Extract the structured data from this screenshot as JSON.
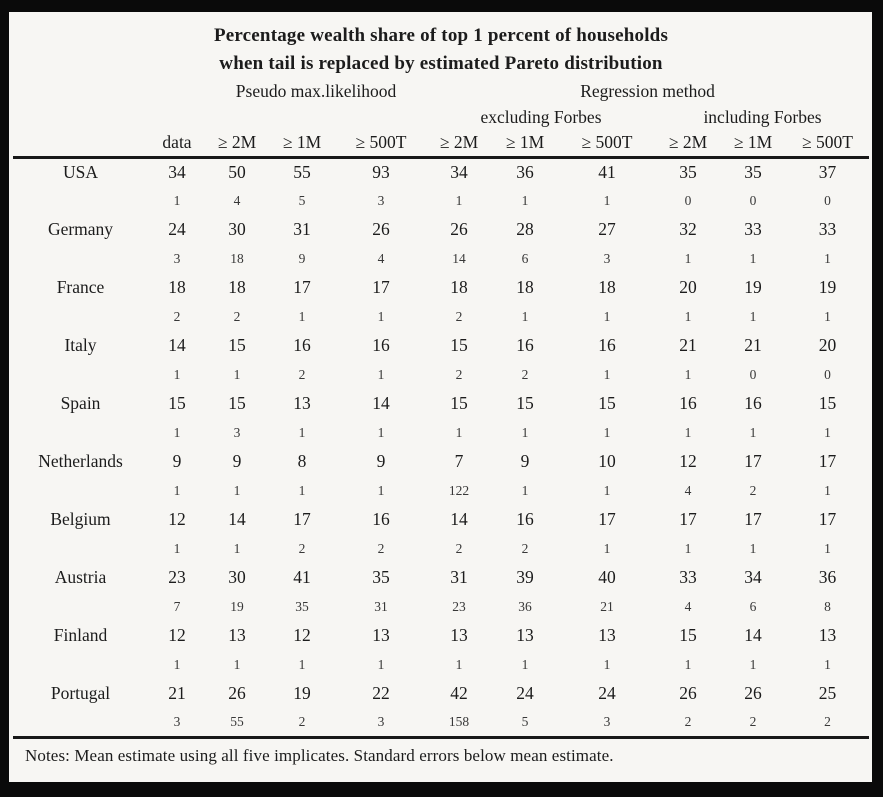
{
  "title_line1": "Percentage wealth share of top 1 percent of households",
  "title_line2": "when tail is replaced by estimated Pareto distribution",
  "header": {
    "method_groups": [
      {
        "label": "Pseudo max.likelihood"
      },
      {
        "label": "Regression method"
      }
    ],
    "forbes_groups": [
      {
        "label": "excluding Forbes"
      },
      {
        "label": "including Forbes"
      }
    ],
    "columns": [
      "data",
      "≥ 2M",
      "≥ 1M",
      "≥ 500T",
      "≥ 2M",
      "≥ 1M",
      "≥ 500T",
      "≥ 2M",
      "≥ 1M",
      "≥ 500T"
    ]
  },
  "rows": [
    {
      "country": "USA",
      "means": [
        34,
        50,
        55,
        93,
        34,
        36,
        41,
        35,
        35,
        37
      ],
      "se": [
        1,
        4,
        5,
        3,
        1,
        1,
        1,
        0,
        0,
        0
      ]
    },
    {
      "country": "Germany",
      "means": [
        24,
        30,
        31,
        26,
        26,
        28,
        27,
        32,
        33,
        33
      ],
      "se": [
        3,
        18,
        9,
        4,
        14,
        6,
        3,
        1,
        1,
        1
      ]
    },
    {
      "country": "France",
      "means": [
        18,
        18,
        17,
        17,
        18,
        18,
        18,
        20,
        19,
        19
      ],
      "se": [
        2,
        2,
        1,
        1,
        2,
        1,
        1,
        1,
        1,
        1
      ]
    },
    {
      "country": "Italy",
      "means": [
        14,
        15,
        16,
        16,
        15,
        16,
        16,
        21,
        21,
        20
      ],
      "se": [
        1,
        1,
        2,
        1,
        2,
        2,
        1,
        1,
        0,
        0
      ]
    },
    {
      "country": "Spain",
      "means": [
        15,
        15,
        13,
        14,
        15,
        15,
        15,
        16,
        16,
        15
      ],
      "se": [
        1,
        3,
        1,
        1,
        1,
        1,
        1,
        1,
        1,
        1
      ]
    },
    {
      "country": "Netherlands",
      "means": [
        9,
        9,
        8,
        9,
        7,
        9,
        10,
        12,
        17,
        17
      ],
      "se": [
        1,
        1,
        1,
        1,
        122,
        1,
        1,
        4,
        2,
        1
      ]
    },
    {
      "country": "Belgium",
      "means": [
        12,
        14,
        17,
        16,
        14,
        16,
        17,
        17,
        17,
        17
      ],
      "se": [
        1,
        1,
        2,
        2,
        2,
        2,
        1,
        1,
        1,
        1
      ]
    },
    {
      "country": "Austria",
      "means": [
        23,
        30,
        41,
        35,
        31,
        39,
        40,
        33,
        34,
        36
      ],
      "se": [
        7,
        19,
        35,
        31,
        23,
        36,
        21,
        4,
        6,
        8
      ]
    },
    {
      "country": "Finland",
      "means": [
        12,
        13,
        12,
        13,
        13,
        13,
        13,
        15,
        14,
        13
      ],
      "se": [
        1,
        1,
        1,
        1,
        1,
        1,
        1,
        1,
        1,
        1
      ]
    },
    {
      "country": "Portugal",
      "means": [
        21,
        26,
        19,
        22,
        42,
        24,
        24,
        26,
        26,
        25
      ],
      "se": [
        3,
        55,
        2,
        3,
        158,
        5,
        3,
        2,
        2,
        2
      ]
    }
  ],
  "notes": "Notes: Mean estimate using all five implicates. Standard errors below mean estimate.",
  "colors": {
    "frame": "#0a0a0a",
    "paper": "#f7f6f3",
    "text": "#1c1c1c",
    "rule": "#181818"
  }
}
